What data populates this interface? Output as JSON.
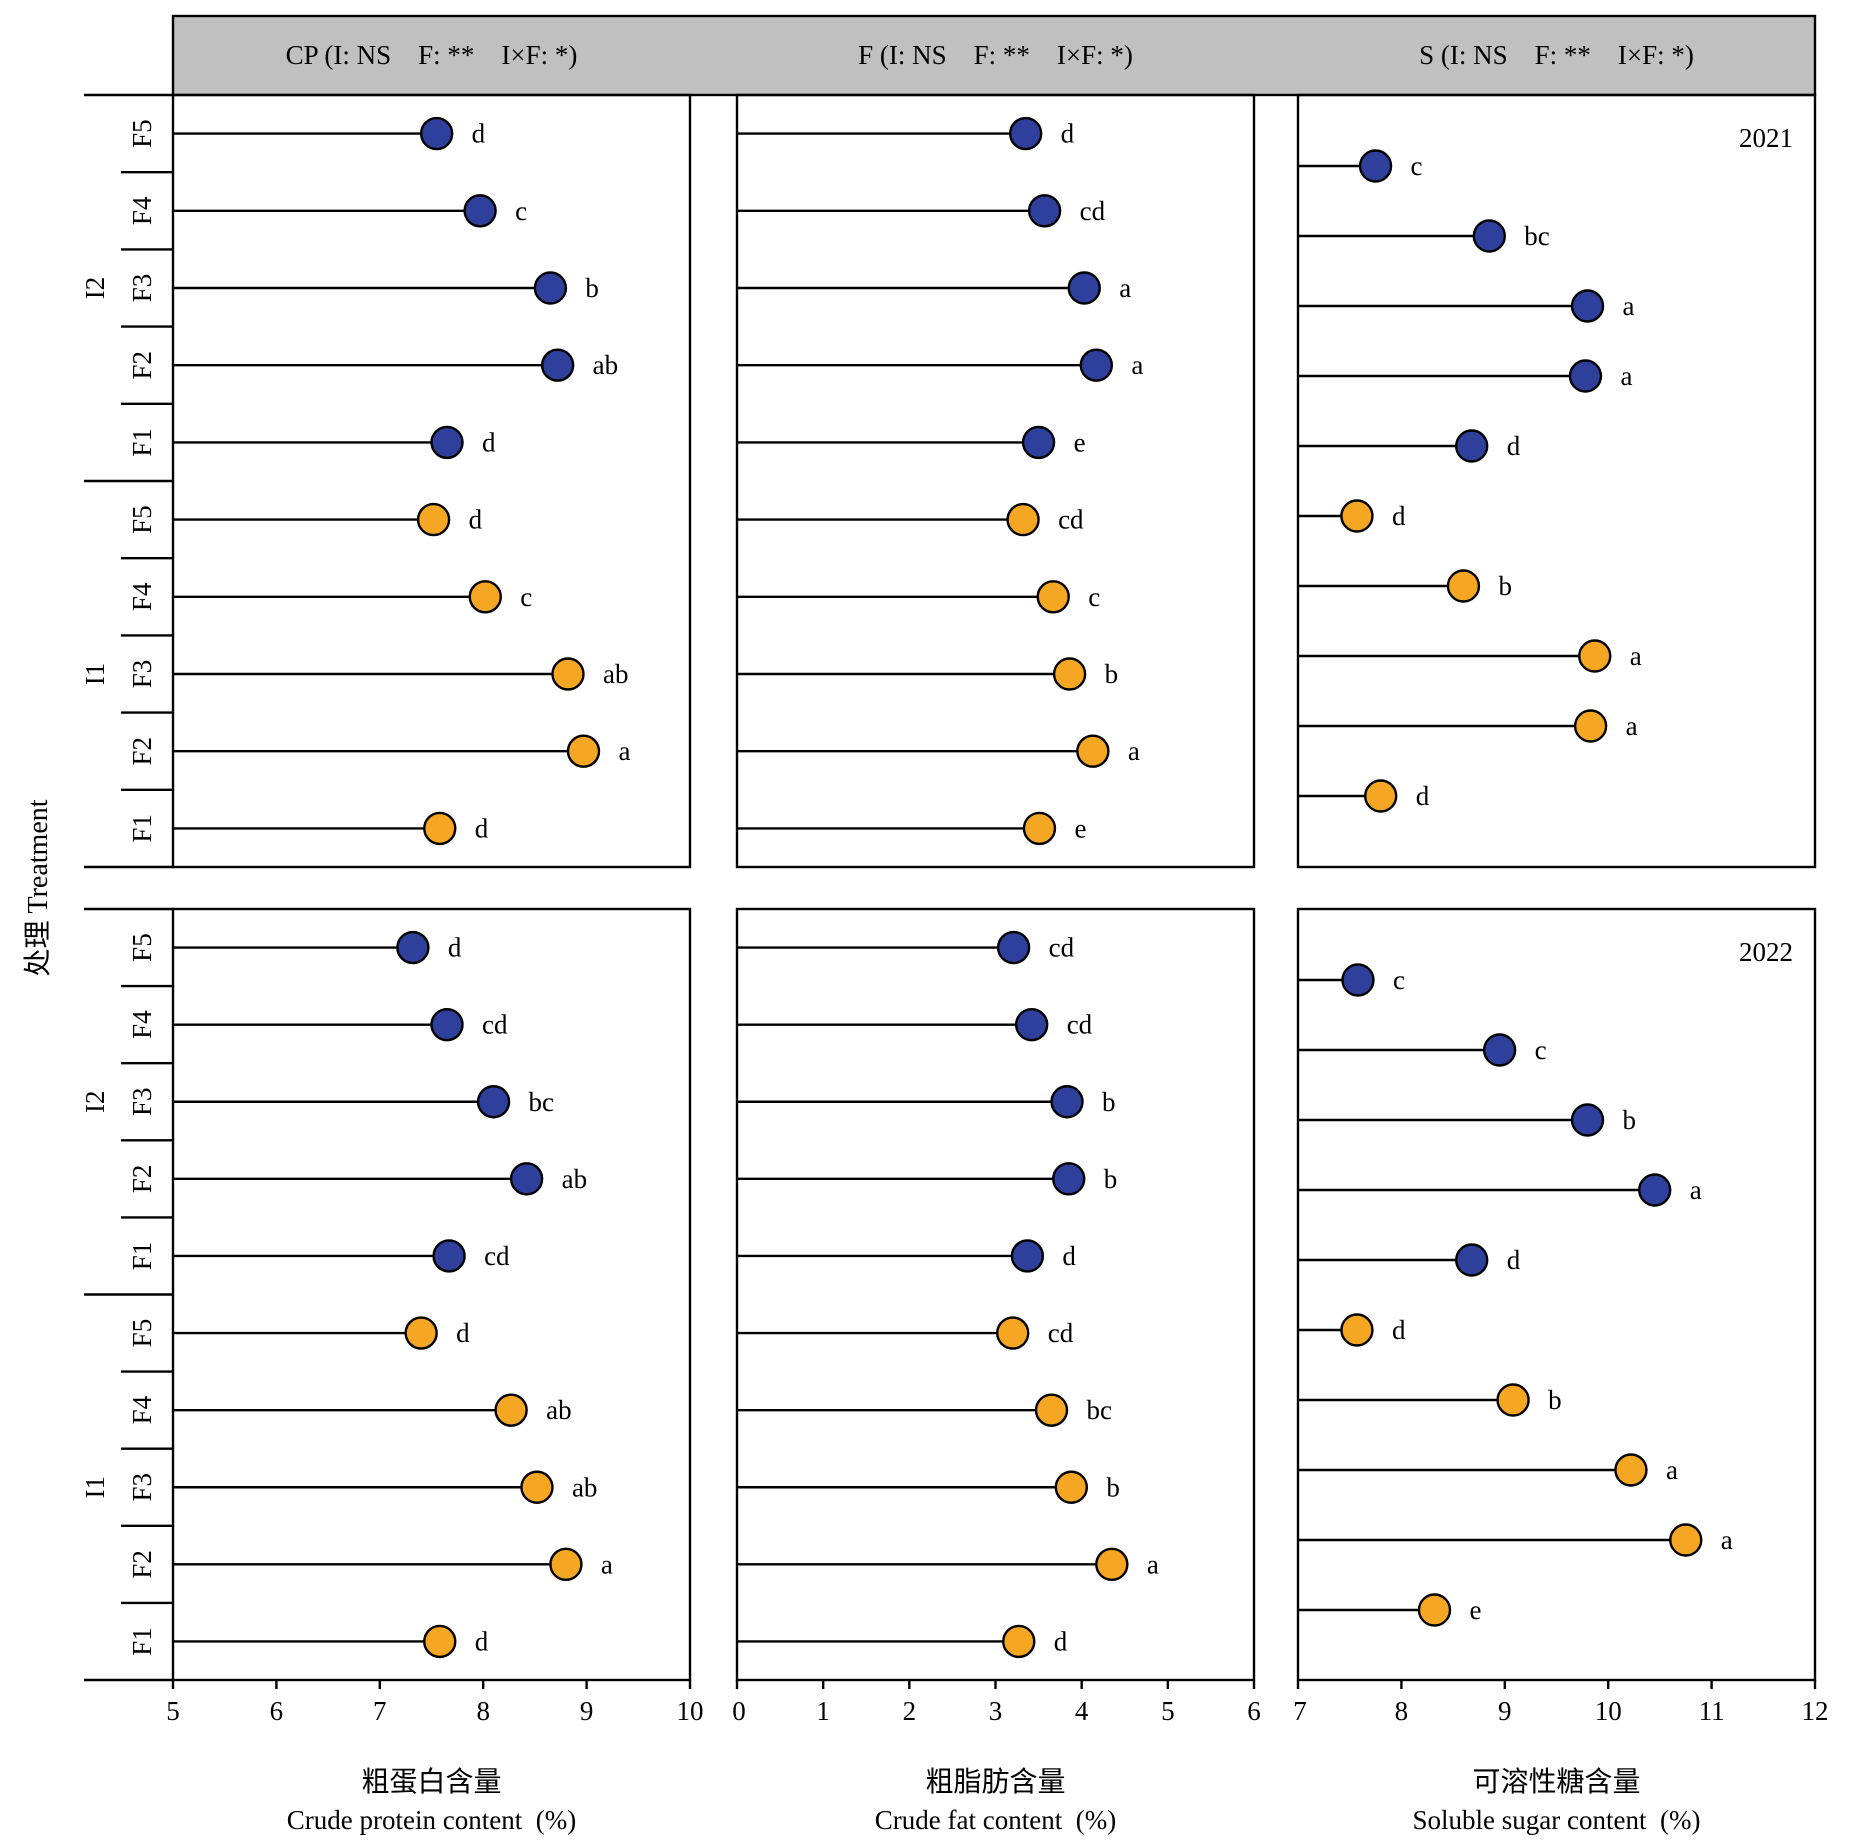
{
  "colors": {
    "I2": "#2e3f9c",
    "I1": "#f5a623",
    "header_bg": "#c0c0c0"
  },
  "y_axis": {
    "title": "处理 Treatment"
  },
  "chart_data": [
    {
      "type": "lollipop",
      "header": "CP (I: NS    F: **    I×F: *)",
      "xlabel_cn": "粗蛋白含量",
      "xlabel_en": "Crude protein content  (%)",
      "xlim": [
        5,
        10
      ],
      "xticks": [
        5,
        6,
        7,
        8,
        9,
        10
      ],
      "years": [
        {
          "year": "2021",
          "show_year": false,
          "points": [
            {
              "g": "I2",
              "f": "F5",
              "v": 7.55,
              "s": "d"
            },
            {
              "g": "I2",
              "f": "F4",
              "v": 7.97,
              "s": "c"
            },
            {
              "g": "I2",
              "f": "F3",
              "v": 8.65,
              "s": "b"
            },
            {
              "g": "I2",
              "f": "F2",
              "v": 8.72,
              "s": "ab"
            },
            {
              "g": "I2",
              "f": "F1",
              "v": 7.65,
              "s": "d"
            },
            {
              "g": "I1",
              "f": "F5",
              "v": 7.52,
              "s": "d"
            },
            {
              "g": "I1",
              "f": "F4",
              "v": 8.02,
              "s": "c"
            },
            {
              "g": "I1",
              "f": "F3",
              "v": 8.82,
              "s": "ab"
            },
            {
              "g": "I1",
              "f": "F2",
              "v": 8.97,
              "s": "a"
            },
            {
              "g": "I1",
              "f": "F1",
              "v": 7.58,
              "s": "d"
            }
          ]
        },
        {
          "year": "2022",
          "show_year": false,
          "points": [
            {
              "g": "I2",
              "f": "F5",
              "v": 7.32,
              "s": "d"
            },
            {
              "g": "I2",
              "f": "F4",
              "v": 7.65,
              "s": "cd"
            },
            {
              "g": "I2",
              "f": "F3",
              "v": 8.1,
              "s": "bc"
            },
            {
              "g": "I2",
              "f": "F2",
              "v": 8.42,
              "s": "ab"
            },
            {
              "g": "I2",
              "f": "F1",
              "v": 7.67,
              "s": "cd"
            },
            {
              "g": "I1",
              "f": "F5",
              "v": 7.4,
              "s": "d"
            },
            {
              "g": "I1",
              "f": "F4",
              "v": 8.27,
              "s": "ab"
            },
            {
              "g": "I1",
              "f": "F3",
              "v": 8.52,
              "s": "ab"
            },
            {
              "g": "I1",
              "f": "F2",
              "v": 8.8,
              "s": "a"
            },
            {
              "g": "I1",
              "f": "F1",
              "v": 7.58,
              "s": "d"
            }
          ]
        }
      ]
    },
    {
      "type": "lollipop",
      "header": "F (I: NS    F: **    I×F: *)",
      "xlabel_cn": "粗脂肪含量",
      "xlabel_en": "Crude fat content  (%)",
      "xlim": [
        0,
        6
      ],
      "xticks": [
        0,
        1,
        2,
        3,
        4,
        5,
        6
      ],
      "years": [
        {
          "year": "2021",
          "show_year": false,
          "points": [
            {
              "g": "I2",
              "f": "F5",
              "v": 3.35,
              "s": "d"
            },
            {
              "g": "I2",
              "f": "F4",
              "v": 3.57,
              "s": "cd"
            },
            {
              "g": "I2",
              "f": "F3",
              "v": 4.03,
              "s": "a"
            },
            {
              "g": "I2",
              "f": "F2",
              "v": 4.17,
              "s": "a"
            },
            {
              "g": "I2",
              "f": "F1",
              "v": 3.5,
              "s": "e"
            },
            {
              "g": "I1",
              "f": "F5",
              "v": 3.32,
              "s": "cd"
            },
            {
              "g": "I1",
              "f": "F4",
              "v": 3.67,
              "s": "c"
            },
            {
              "g": "I1",
              "f": "F3",
              "v": 3.86,
              "s": "b"
            },
            {
              "g": "I1",
              "f": "F2",
              "v": 4.13,
              "s": "a"
            },
            {
              "g": "I1",
              "f": "F1",
              "v": 3.51,
              "s": "e"
            }
          ]
        },
        {
          "year": "2022",
          "show_year": false,
          "points": [
            {
              "g": "I2",
              "f": "F5",
              "v": 3.21,
              "s": "cd"
            },
            {
              "g": "I2",
              "f": "F4",
              "v": 3.42,
              "s": "cd"
            },
            {
              "g": "I2",
              "f": "F3",
              "v": 3.83,
              "s": "b"
            },
            {
              "g": "I2",
              "f": "F2",
              "v": 3.85,
              "s": "b"
            },
            {
              "g": "I2",
              "f": "F1",
              "v": 3.37,
              "s": "d"
            },
            {
              "g": "I1",
              "f": "F5",
              "v": 3.2,
              "s": "cd"
            },
            {
              "g": "I1",
              "f": "F4",
              "v": 3.65,
              "s": "bc"
            },
            {
              "g": "I1",
              "f": "F3",
              "v": 3.88,
              "s": "b"
            },
            {
              "g": "I1",
              "f": "F2",
              "v": 4.35,
              "s": "a"
            },
            {
              "g": "I1",
              "f": "F1",
              "v": 3.27,
              "s": "d"
            }
          ]
        }
      ]
    },
    {
      "type": "lollipop",
      "header": "S (I: NS    F: **    I×F: *)",
      "xlabel_cn": "可溶性糖含量",
      "xlabel_en": "Soluble sugar content  (%)",
      "xlim": [
        7,
        12
      ],
      "xticks": [
        7,
        8,
        9,
        10,
        11,
        12
      ],
      "years": [
        {
          "year": "2021",
          "show_year": true,
          "points": [
            {
              "g": "I2",
              "f": "F5",
              "v": 7.75,
              "s": "c"
            },
            {
              "g": "I2",
              "f": "F4",
              "v": 8.85,
              "s": "bc"
            },
            {
              "g": "I2",
              "f": "F3",
              "v": 9.8,
              "s": "a"
            },
            {
              "g": "I2",
              "f": "F2",
              "v": 9.78,
              "s": "a"
            },
            {
              "g": "I2",
              "f": "F1",
              "v": 8.68,
              "s": "d"
            },
            {
              "g": "I1",
              "f": "F5",
              "v": 7.57,
              "s": "d"
            },
            {
              "g": "I1",
              "f": "F4",
              "v": 8.6,
              "s": "b"
            },
            {
              "g": "I1",
              "f": "F3",
              "v": 9.87,
              "s": "a"
            },
            {
              "g": "I1",
              "f": "F2",
              "v": 9.83,
              "s": "a"
            },
            {
              "g": "I1",
              "f": "F1",
              "v": 7.8,
              "s": "d"
            }
          ]
        },
        {
          "year": "2022",
          "show_year": true,
          "points": [
            {
              "g": "I2",
              "f": "F5",
              "v": 7.58,
              "s": "c"
            },
            {
              "g": "I2",
              "f": "F4",
              "v": 8.95,
              "s": "c"
            },
            {
              "g": "I2",
              "f": "F3",
              "v": 9.8,
              "s": "b"
            },
            {
              "g": "I2",
              "f": "F2",
              "v": 10.45,
              "s": "a"
            },
            {
              "g": "I2",
              "f": "F1",
              "v": 8.68,
              "s": "d"
            },
            {
              "g": "I1",
              "f": "F5",
              "v": 7.57,
              "s": "d"
            },
            {
              "g": "I1",
              "f": "F4",
              "v": 9.08,
              "s": "b"
            },
            {
              "g": "I1",
              "f": "F3",
              "v": 10.22,
              "s": "a"
            },
            {
              "g": "I1",
              "f": "F2",
              "v": 10.75,
              "s": "a"
            },
            {
              "g": "I1",
              "f": "F1",
              "v": 8.32,
              "s": "e"
            }
          ]
        }
      ]
    }
  ]
}
